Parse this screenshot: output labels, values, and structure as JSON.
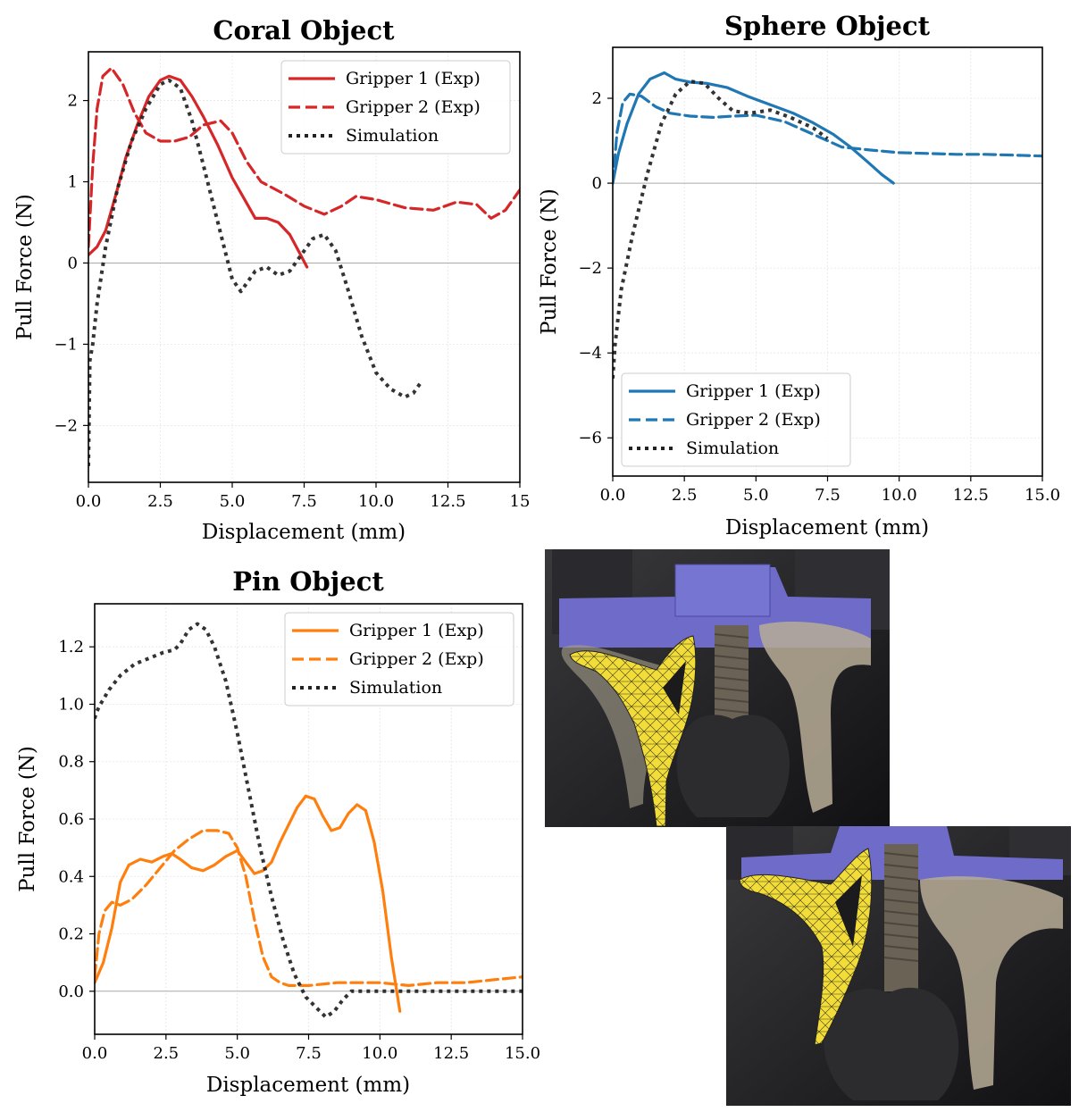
{
  "chart_data": [
    {
      "type": "line",
      "title": "Coral Object",
      "xlabel": "Displacement (mm)",
      "ylabel": "Pull Force (N)",
      "xlim": [
        0,
        15
      ],
      "ylim": [
        -2.7,
        2.6
      ],
      "xticks": [
        0,
        2.5,
        5,
        7.5,
        10,
        12.5,
        15
      ],
      "xtick_labels": [
        "0.0",
        "2.5",
        "5.0",
        "7.5",
        "10.0",
        "12.5",
        "15"
      ],
      "yticks": [
        -2,
        -1,
        0,
        1,
        2
      ],
      "ytick_labels": [
        "−2",
        "−1",
        "0",
        "1",
        "2"
      ],
      "grid": true,
      "legend_position": "top-right",
      "series": [
        {
          "name": "Gripper 1 (Exp)",
          "color": "#d62728",
          "style": "solid",
          "x": [
            0,
            0.3,
            0.6,
            1.0,
            1.3,
            1.7,
            2.1,
            2.5,
            2.8,
            3.2,
            3.6,
            4.0,
            4.5,
            5.0,
            5.4,
            5.8,
            6.2,
            6.6,
            7.0,
            7.3,
            7.6
          ],
          "y": [
            0.1,
            0.2,
            0.4,
            0.9,
            1.3,
            1.7,
            2.05,
            2.25,
            2.3,
            2.25,
            2.05,
            1.8,
            1.45,
            1.05,
            0.8,
            0.55,
            0.55,
            0.5,
            0.35,
            0.15,
            -0.05
          ]
        },
        {
          "name": "Gripper 2 (Exp)",
          "color": "#d62728",
          "style": "dashed",
          "x": [
            0,
            0.15,
            0.3,
            0.5,
            0.8,
            1.2,
            1.6,
            2.0,
            2.5,
            3.0,
            3.5,
            4.0,
            4.6,
            5.0,
            5.5,
            6.0,
            6.8,
            7.5,
            8.2,
            8.8,
            9.3,
            10.0,
            11.0,
            12.0,
            12.8,
            13.5,
            14.0,
            14.5,
            15.0
          ],
          "y": [
            0.2,
            1.2,
            1.9,
            2.3,
            2.4,
            2.2,
            1.85,
            1.6,
            1.5,
            1.5,
            1.55,
            1.7,
            1.75,
            1.6,
            1.25,
            1.0,
            0.85,
            0.7,
            0.6,
            0.7,
            0.82,
            0.78,
            0.68,
            0.65,
            0.75,
            0.72,
            0.55,
            0.65,
            0.9
          ]
        },
        {
          "name": "Simulation",
          "color": "#222222",
          "style": "dotted",
          "x": [
            0,
            0.05,
            0.15,
            0.3,
            0.6,
            1.0,
            1.5,
            2.0,
            2.5,
            2.8,
            3.2,
            3.6,
            4.0,
            4.5,
            5.0,
            5.3,
            5.8,
            6.2,
            6.6,
            7.0,
            7.4,
            7.8,
            8.2,
            8.6,
            9.0,
            9.5,
            10.0,
            10.5,
            11.0,
            11.3,
            11.6
          ],
          "y": [
            -2.5,
            -1.2,
            -1.0,
            -0.5,
            0.2,
            0.9,
            1.5,
            1.9,
            2.2,
            2.25,
            2.15,
            1.75,
            1.2,
            0.5,
            -0.2,
            -0.35,
            -0.1,
            -0.05,
            -0.15,
            -0.1,
            0.1,
            0.3,
            0.35,
            0.15,
            -0.3,
            -0.9,
            -1.35,
            -1.55,
            -1.65,
            -1.6,
            -1.45
          ]
        }
      ]
    },
    {
      "type": "line",
      "title": "Sphere Object",
      "xlabel": "Displacement (mm)",
      "ylabel": "Pull Force (N)",
      "xlim": [
        0,
        15
      ],
      "ylim": [
        -6.9,
        3.2
      ],
      "xticks": [
        0,
        2.5,
        5,
        7.5,
        10,
        12.5,
        15
      ],
      "xtick_labels": [
        "0.0",
        "2.5",
        "5.0",
        "7.5",
        "10.0",
        "12.5",
        "15.0"
      ],
      "yticks": [
        -6,
        -4,
        -2,
        0,
        2
      ],
      "ytick_labels": [
        "−6",
        "−4",
        "−2",
        "0",
        "2"
      ],
      "grid": true,
      "legend_position": "bottom-left",
      "series": [
        {
          "name": "Gripper 1 (Exp)",
          "color": "#1f77b4",
          "style": "solid",
          "x": [
            0,
            0.2,
            0.5,
            0.9,
            1.3,
            1.8,
            2.2,
            2.7,
            3.3,
            4.0,
            4.7,
            5.5,
            6.3,
            7.0,
            7.7,
            8.3,
            8.9,
            9.4,
            9.8
          ],
          "y": [
            0,
            0.7,
            1.4,
            2.1,
            2.45,
            2.6,
            2.45,
            2.38,
            2.35,
            2.25,
            2.05,
            1.85,
            1.65,
            1.42,
            1.15,
            0.85,
            0.5,
            0.2,
            0
          ]
        },
        {
          "name": "Gripper 2 (Exp)",
          "color": "#1f77b4",
          "style": "dashed",
          "x": [
            0,
            0.15,
            0.35,
            0.6,
            1.0,
            1.5,
            2.0,
            2.7,
            3.5,
            4.2,
            5.0,
            6.0,
            7.0,
            8.0,
            9.0,
            10.0,
            11.0,
            12.0,
            13.0,
            14.0,
            15.0
          ],
          "y": [
            0,
            1.2,
            1.9,
            2.1,
            2.05,
            1.8,
            1.65,
            1.58,
            1.55,
            1.58,
            1.6,
            1.45,
            1.15,
            0.85,
            0.78,
            0.72,
            0.7,
            0.68,
            0.68,
            0.66,
            0.64
          ]
        },
        {
          "name": "Simulation",
          "color": "#222222",
          "style": "dotted",
          "x": [
            0,
            0.08,
            0.3,
            0.7,
            1.2,
            1.7,
            2.2,
            2.7,
            3.2,
            3.7,
            4.2,
            4.8,
            5.5,
            6.2,
            7.0,
            7.5
          ],
          "y": [
            -4.6,
            -3.8,
            -2.5,
            -1.2,
            0.2,
            1.4,
            2.1,
            2.4,
            2.35,
            2.0,
            1.7,
            1.65,
            1.72,
            1.55,
            1.3,
            1.05
          ]
        }
      ]
    },
    {
      "type": "line",
      "title": "Pin Object",
      "xlabel": "Displacement (mm)",
      "ylabel": "Pull Force (N)",
      "xlim": [
        0,
        15
      ],
      "ylim": [
        -0.15,
        1.35
      ],
      "xticks": [
        0,
        2.5,
        5,
        7.5,
        10,
        12.5,
        15
      ],
      "xtick_labels": [
        "0.0",
        "2.5",
        "5.0",
        "7.5",
        "10.0",
        "12.5",
        "15.0"
      ],
      "yticks": [
        0,
        0.2,
        0.4,
        0.6,
        0.8,
        1.0,
        1.2
      ],
      "ytick_labels": [
        "0.0",
        "0.2",
        "0.4",
        "0.6",
        "0.8",
        "1.0",
        "1.2"
      ],
      "grid": true,
      "legend_position": "top-right",
      "series": [
        {
          "name": "Gripper 1 (Exp)",
          "color": "#ff7f0e",
          "style": "solid",
          "x": [
            0,
            0.3,
            0.6,
            0.9,
            1.2,
            1.6,
            2.0,
            2.4,
            2.7,
            3.0,
            3.4,
            3.8,
            4.2,
            4.6,
            5.0,
            5.3,
            5.6,
            5.9,
            6.2,
            6.5,
            6.8,
            7.1,
            7.4,
            7.7,
            8.0,
            8.3,
            8.6,
            8.9,
            9.2,
            9.5,
            9.8,
            10.1,
            10.4,
            10.7
          ],
          "y": [
            0.03,
            0.1,
            0.22,
            0.38,
            0.44,
            0.46,
            0.45,
            0.47,
            0.48,
            0.46,
            0.43,
            0.42,
            0.44,
            0.47,
            0.49,
            0.45,
            0.41,
            0.42,
            0.45,
            0.52,
            0.58,
            0.64,
            0.68,
            0.67,
            0.61,
            0.56,
            0.57,
            0.62,
            0.65,
            0.63,
            0.52,
            0.35,
            0.12,
            -0.07
          ]
        },
        {
          "name": "Gripper 2 (Exp)",
          "color": "#ff7f0e",
          "style": "dashed",
          "x": [
            0,
            0.15,
            0.35,
            0.6,
            0.9,
            1.3,
            1.8,
            2.3,
            2.8,
            3.3,
            3.8,
            4.3,
            4.7,
            5.0,
            5.3,
            5.6,
            5.9,
            6.2,
            6.5,
            6.8,
            7.5,
            8.5,
            10.0,
            11.0,
            12.0,
            13.0,
            14.0,
            15.0
          ],
          "y": [
            0.05,
            0.2,
            0.28,
            0.31,
            0.3,
            0.32,
            0.37,
            0.43,
            0.49,
            0.53,
            0.56,
            0.56,
            0.55,
            0.5,
            0.4,
            0.25,
            0.12,
            0.05,
            0.03,
            0.02,
            0.02,
            0.03,
            0.03,
            0.02,
            0.03,
            0.03,
            0.04,
            0.05
          ]
        },
        {
          "name": "Simulation",
          "color": "#222222",
          "style": "dotted",
          "x": [
            0,
            0.05,
            0.2,
            0.5,
            0.9,
            1.4,
            1.9,
            2.4,
            2.8,
            3.0,
            3.3,
            3.6,
            3.9,
            4.2,
            4.6,
            5.0,
            5.4,
            5.8,
            6.2,
            6.6,
            7.0,
            7.4,
            7.8,
            8.1,
            8.4,
            8.7,
            9.0,
            10,
            11,
            12,
            13,
            14,
            15
          ],
          "y": [
            0.95,
            0.97,
            1.0,
            1.05,
            1.1,
            1.14,
            1.16,
            1.18,
            1.19,
            1.21,
            1.26,
            1.28,
            1.26,
            1.2,
            1.08,
            0.9,
            0.7,
            0.5,
            0.33,
            0.18,
            0.06,
            -0.02,
            -0.06,
            -0.09,
            -0.07,
            -0.03,
            0.0,
            0.0,
            0.0,
            0.0,
            0.0,
            0.0,
            0.0
          ]
        }
      ]
    }
  ],
  "photos": [
    {
      "icon": "gripper-photo-icon"
    },
    {
      "icon": "gripper-photo-icon"
    }
  ]
}
